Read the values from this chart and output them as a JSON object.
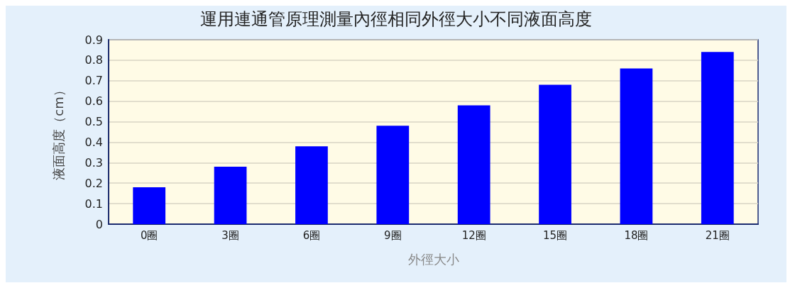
{
  "chart_data": {
    "type": "bar",
    "title": "運用連通管原理測量內徑相同外徑大小不同液面高度",
    "xlabel": "外徑大小",
    "ylabel": "液面高度（cm）",
    "categories": [
      "0圈",
      "3圈",
      "6圈",
      "9圈",
      "12圈",
      "15圈",
      "18圈",
      "21圈"
    ],
    "values": [
      0.18,
      0.28,
      0.38,
      0.48,
      0.58,
      0.68,
      0.76,
      0.84
    ],
    "color": "#0000ff",
    "ylim": [
      0,
      0.9
    ],
    "yticks": [
      0,
      0.1,
      0.2,
      0.3,
      0.4,
      0.5,
      0.6,
      0.7,
      0.8,
      0.9
    ],
    "grid": "y"
  }
}
